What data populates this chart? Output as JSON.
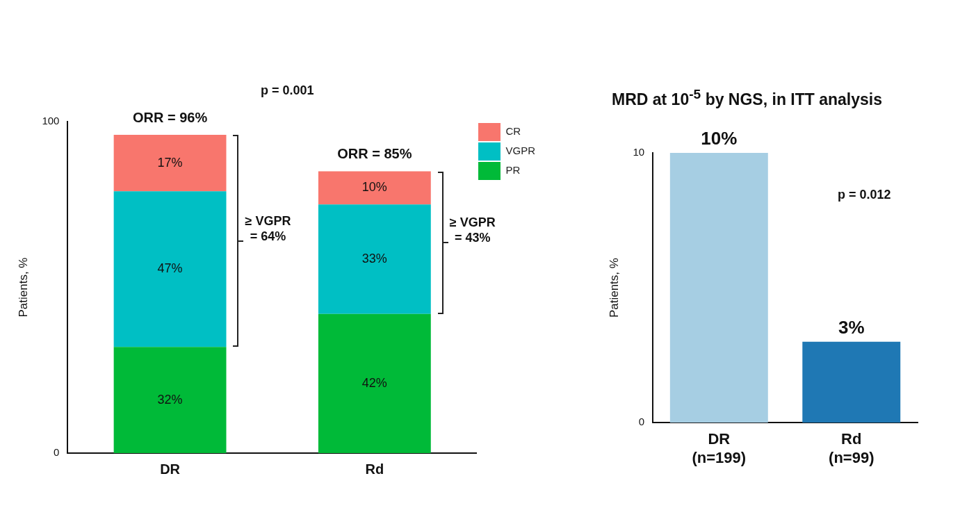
{
  "chart_data": [
    {
      "type": "bar",
      "stacked": true,
      "categories": [
        "DR",
        "Rd"
      ],
      "ylabel": "Patients, %",
      "ylim": [
        0,
        100
      ],
      "yticks": [
        0,
        100
      ],
      "legend": "top right",
      "series": [
        {
          "name": "PR",
          "color": "#00ba38",
          "values": [
            32,
            42
          ],
          "value_labels": [
            "32%",
            "42%"
          ]
        },
        {
          "name": "VGPR",
          "color": "#00bfc4",
          "values": [
            47,
            33
          ],
          "value_labels": [
            "47%",
            "33%"
          ]
        },
        {
          "name": "CR",
          "color": "#f8766d",
          "values": [
            17,
            10
          ],
          "value_labels": [
            "17%",
            "10%"
          ]
        }
      ],
      "totals": [
        "ORR = 96%",
        "ORR = 85%"
      ],
      "annotations": [
        "p = 0.001",
        "≥ VGPR = 64%",
        "≥ VGPR = 43%"
      ]
    },
    {
      "type": "bar",
      "title": "MRD at 10$^{-5}$ by NGS, in ITT analysis",
      "categories": [
        "DR\n(n=199)",
        "Rd\n(n=99)"
      ],
      "values": [
        10,
        3
      ],
      "colors": [
        "#a6cee3",
        "#1f78b4"
      ],
      "value_labels": [
        "10%",
        "3%"
      ],
      "ylabel": "Patients, %",
      "ylim": [
        0,
        10
      ],
      "yticks": [
        0,
        10
      ],
      "annotations": [
        "p = 0.012"
      ]
    }
  ]
}
